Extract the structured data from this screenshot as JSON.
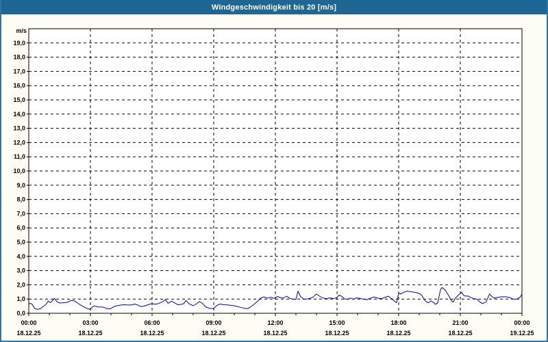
{
  "window": {
    "title": "Windgeschwindigkeit bis 20 [m/s]"
  },
  "colors": {
    "titlebar_bg": "#1e6795",
    "titlebar_text": "#ffffff",
    "window_border": "#2e75a5",
    "page_bg": "#fdfdf5",
    "plot_bg": "#ffffff",
    "grid": "#000000",
    "axis": "#000000",
    "tick_label": "#000000",
    "series": "#0000c0"
  },
  "chart_data": {
    "type": "line",
    "title": "Windgeschwindigkeit bis 20 [m/s]",
    "ylabel_unit": "m/s",
    "ylim": [
      0,
      20
    ],
    "y_tick_step": 1.0,
    "y_tick_labels": [
      "0,0",
      "1,0",
      "2,0",
      "3,0",
      "4,0",
      "5,0",
      "6,0",
      "7,0",
      "8,0",
      "9,0",
      "10,0",
      "11,0",
      "12,0",
      "13,0",
      "14,0",
      "15,0",
      "16,0",
      "17,0",
      "18,0",
      "19,0"
    ],
    "x_hours_range": [
      0,
      24
    ],
    "x_minor_tick_hours": 1,
    "x_major_ticks": [
      {
        "hour": 0,
        "time": "00:00",
        "date": "18.12.25"
      },
      {
        "hour": 3,
        "time": "03:00",
        "date": "18.12.25"
      },
      {
        "hour": 6,
        "time": "06:00",
        "date": "18.12.25"
      },
      {
        "hour": 9,
        "time": "09:00",
        "date": "18.12.25"
      },
      {
        "hour": 12,
        "time": "12:00",
        "date": "18.12.25"
      },
      {
        "hour": 15,
        "time": "15:00",
        "date": "18.12.25"
      },
      {
        "hour": 18,
        "time": "18:00",
        "date": "18.12.25"
      },
      {
        "hour": 21,
        "time": "21:00",
        "date": "18.12.25"
      },
      {
        "hour": 24,
        "time": "00:00",
        "date": "19.12.25"
      }
    ],
    "grid": {
      "horizontal": true,
      "vertical": true,
      "style": "dashed"
    },
    "legend": "none",
    "series": [
      {
        "name": "Windgeschwindigkeit",
        "unit": "m/s",
        "color": "#0000c0",
        "points": [
          [
            0,
            0.65
          ],
          [
            0.08,
            0.7
          ],
          [
            0.17,
            0.62
          ],
          [
            0.3,
            0.32
          ],
          [
            0.45,
            0.28
          ],
          [
            0.58,
            0.33
          ],
          [
            0.72,
            0.5
          ],
          [
            0.83,
            0.62
          ],
          [
            0.95,
            0.85
          ],
          [
            1.05,
            0.75
          ],
          [
            1.15,
            0.88
          ],
          [
            1.25,
            1.05
          ],
          [
            1.38,
            0.8
          ],
          [
            1.5,
            0.72
          ],
          [
            1.63,
            0.73
          ],
          [
            1.78,
            0.75
          ],
          [
            1.9,
            0.78
          ],
          [
            2.05,
            0.9
          ],
          [
            2.2,
            0.88
          ],
          [
            2.35,
            0.75
          ],
          [
            2.55,
            0.55
          ],
          [
            2.75,
            0.4
          ],
          [
            2.9,
            0.3
          ],
          [
            3.0,
            0.27
          ],
          [
            3.1,
            0.45
          ],
          [
            3.2,
            0.52
          ],
          [
            3.35,
            0.45
          ],
          [
            3.5,
            0.44
          ],
          [
            3.65,
            0.42
          ],
          [
            3.8,
            0.33
          ],
          [
            3.95,
            0.3
          ],
          [
            4.05,
            0.38
          ],
          [
            4.2,
            0.5
          ],
          [
            4.35,
            0.55
          ],
          [
            4.5,
            0.58
          ],
          [
            4.65,
            0.6
          ],
          [
            4.8,
            0.58
          ],
          [
            5.0,
            0.58
          ],
          [
            5.15,
            0.65
          ],
          [
            5.3,
            0.58
          ],
          [
            5.45,
            0.47
          ],
          [
            5.6,
            0.5
          ],
          [
            5.75,
            0.57
          ],
          [
            5.9,
            0.65
          ],
          [
            6.0,
            0.68
          ],
          [
            6.15,
            0.64
          ],
          [
            6.3,
            0.68
          ],
          [
            6.5,
            0.8
          ],
          [
            6.65,
            0.95
          ],
          [
            6.78,
            0.7
          ],
          [
            6.95,
            0.85
          ],
          [
            7.1,
            0.73
          ],
          [
            7.25,
            0.6
          ],
          [
            7.4,
            0.62
          ],
          [
            7.55,
            0.68
          ],
          [
            7.65,
            0.9
          ],
          [
            7.8,
            0.67
          ],
          [
            8.0,
            0.53
          ],
          [
            8.15,
            0.65
          ],
          [
            8.3,
            0.82
          ],
          [
            8.45,
            0.7
          ],
          [
            8.6,
            0.45
          ],
          [
            8.8,
            0.34
          ],
          [
            9.0,
            0.33
          ],
          [
            9.15,
            0.55
          ],
          [
            9.3,
            0.65
          ],
          [
            9.5,
            0.6
          ],
          [
            9.7,
            0.58
          ],
          [
            9.9,
            0.55
          ],
          [
            10.1,
            0.5
          ],
          [
            10.3,
            0.42
          ],
          [
            10.5,
            0.35
          ],
          [
            10.65,
            0.32
          ],
          [
            10.8,
            0.45
          ],
          [
            11.0,
            0.68
          ],
          [
            11.15,
            0.87
          ],
          [
            11.3,
            1.08
          ],
          [
            11.45,
            1.15
          ],
          [
            11.6,
            1.07
          ],
          [
            11.8,
            1.12
          ],
          [
            11.95,
            1.05
          ],
          [
            12.1,
            1.18
          ],
          [
            12.25,
            1.1
          ],
          [
            12.4,
            1.08
          ],
          [
            12.55,
            1.2
          ],
          [
            12.7,
            1.05
          ],
          [
            12.85,
            1.0
          ],
          [
            13.0,
            0.98
          ],
          [
            13.1,
            1.55
          ],
          [
            13.22,
            1.18
          ],
          [
            13.4,
            0.98
          ],
          [
            13.6,
            1.02
          ],
          [
            13.8,
            1.1
          ],
          [
            14.0,
            1.35
          ],
          [
            14.15,
            1.2
          ],
          [
            14.3,
            1.08
          ],
          [
            14.5,
            1.03
          ],
          [
            14.65,
            1.08
          ],
          [
            14.85,
            1.03
          ],
          [
            15.0,
            1.12
          ],
          [
            15.1,
            1.28
          ],
          [
            15.25,
            1.18
          ],
          [
            15.35,
            1.02
          ],
          [
            15.5,
            0.98
          ],
          [
            15.65,
            1.07
          ],
          [
            15.8,
            0.98
          ],
          [
            15.95,
            1.08
          ],
          [
            16.1,
            1.05
          ],
          [
            16.3,
            1.0
          ],
          [
            16.45,
            0.95
          ],
          [
            16.6,
            1.05
          ],
          [
            16.8,
            1.15
          ],
          [
            17.0,
            1.06
          ],
          [
            17.15,
            1.03
          ],
          [
            17.3,
            1.1
          ],
          [
            17.5,
            1.2
          ],
          [
            17.65,
            1.03
          ],
          [
            17.78,
            0.87
          ],
          [
            17.9,
            0.74
          ],
          [
            18.0,
            1.4
          ],
          [
            18.1,
            1.35
          ],
          [
            18.25,
            1.48
          ],
          [
            18.4,
            1.55
          ],
          [
            18.6,
            1.52
          ],
          [
            18.75,
            1.48
          ],
          [
            18.9,
            1.44
          ],
          [
            19.05,
            1.35
          ],
          [
            19.15,
            1.2
          ],
          [
            19.25,
            0.95
          ],
          [
            19.35,
            0.8
          ],
          [
            19.45,
            0.74
          ],
          [
            19.57,
            0.87
          ],
          [
            19.67,
            0.79
          ],
          [
            19.78,
            0.63
          ],
          [
            19.9,
            0.72
          ],
          [
            19.98,
            1.3
          ],
          [
            20.05,
            1.72
          ],
          [
            20.12,
            1.81
          ],
          [
            20.25,
            1.65
          ],
          [
            20.35,
            1.44
          ],
          [
            20.45,
            1.2
          ],
          [
            20.55,
            0.92
          ],
          [
            20.65,
            0.79
          ],
          [
            20.78,
            1.1
          ],
          [
            20.9,
            1.27
          ],
          [
            21.0,
            1.4
          ],
          [
            21.07,
            1.48
          ],
          [
            21.15,
            1.27
          ],
          [
            21.25,
            1.2
          ],
          [
            21.35,
            1.22
          ],
          [
            21.5,
            1.12
          ],
          [
            21.65,
            1.03
          ],
          [
            21.8,
            1.0
          ],
          [
            21.95,
            0.8
          ],
          [
            22.08,
            0.68
          ],
          [
            22.25,
            0.8
          ],
          [
            22.35,
            1.12
          ],
          [
            22.42,
            1.35
          ],
          [
            22.52,
            1.2
          ],
          [
            22.65,
            1.06
          ],
          [
            22.8,
            1.11
          ],
          [
            23.0,
            1.16
          ],
          [
            23.2,
            1.16
          ],
          [
            23.4,
            1.11
          ],
          [
            23.55,
            1.0
          ],
          [
            23.75,
            1.0
          ],
          [
            23.9,
            1.12
          ],
          [
            23.97,
            1.27
          ],
          [
            24.0,
            1.35
          ]
        ]
      }
    ]
  }
}
